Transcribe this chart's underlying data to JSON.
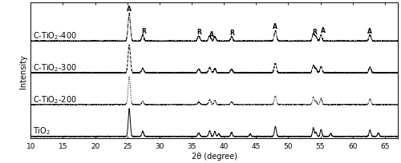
{
  "xlabel": "2θ (degree)",
  "ylabel": "Intensity",
  "xlim": [
    10,
    67
  ],
  "xticks": [
    10,
    15,
    20,
    25,
    30,
    35,
    40,
    45,
    50,
    55,
    60,
    65
  ],
  "series_labels": [
    "TiO₂",
    "C-TiO₂-200",
    "C-TiO₂-300",
    "C-TiO₂-400"
  ],
  "offsets": [
    0.0,
    0.18,
    0.36,
    0.54
  ],
  "scale": 0.16,
  "annotation_fontsize": 5.5,
  "label_fontsize": 7,
  "tick_fontsize": 6.5,
  "lw": 0.7,
  "background_color": "#f0f0f0"
}
